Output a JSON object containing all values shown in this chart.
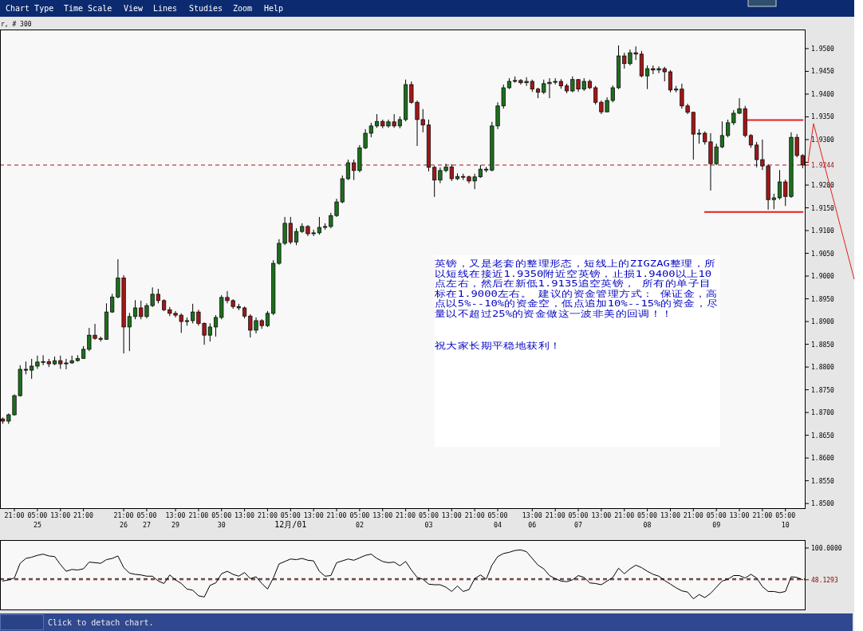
{
  "chart_data": [
    {
      "type": "candlestick",
      "title": "r, # 300",
      "categories": [
        null,
        null,
        "21:00",
        null,
        null,
        null,
        "05:00\n25",
        null,
        null,
        null,
        "13:00",
        null,
        null,
        null,
        "21:00",
        null,
        null,
        null,
        null,
        null,
        null,
        "21:00\n26",
        null,
        null,
        null,
        "05:00\n27",
        null,
        null,
        null,
        null,
        "13:00\n29",
        null,
        null,
        null,
        "21:00",
        null,
        null,
        null,
        "05:00\n30",
        null,
        null,
        null,
        "13:00",
        null,
        null,
        null,
        "21:00",
        null,
        null,
        null,
        "05:00\n12月/01",
        null,
        null,
        null,
        "13:00",
        null,
        null,
        null,
        "21:00",
        null,
        null,
        null,
        "05:00\n02",
        null,
        null,
        null,
        "13:00",
        null,
        null,
        null,
        "21:00",
        null,
        null,
        null,
        "05:00\n03",
        null,
        null,
        null,
        "13:00",
        null,
        null,
        null,
        "21:00",
        null,
        null,
        null,
        "05:00\n04",
        null,
        null,
        null,
        null,
        null,
        "13:00\n06",
        null,
        null,
        null,
        "21:00",
        null,
        null,
        null,
        "05:00\n07",
        null,
        null,
        null,
        "13:00",
        null,
        null,
        null,
        "21:00",
        null,
        null,
        null,
        "05:00\n08",
        null,
        null,
        null,
        "13:00",
        null,
        null,
        null,
        "21:00",
        null,
        null,
        null,
        "05:00\n09",
        null,
        null,
        null,
        "13:00",
        null,
        null,
        null,
        "21:00",
        null,
        null,
        null,
        "05:00\n10",
        null,
        null,
        null
      ],
      "ohlc": [
        [
          1.8686,
          1.8689,
          1.8675,
          1.8681
        ],
        [
          1.8681,
          1.8698,
          1.8675,
          1.8695
        ],
        [
          1.8695,
          1.874,
          1.8693,
          1.8737
        ],
        [
          1.8737,
          1.8804,
          1.8735,
          1.8795
        ],
        [
          1.8795,
          1.8812,
          1.8784,
          1.8793
        ],
        [
          1.8793,
          1.8818,
          1.8774,
          1.8802
        ],
        [
          1.8802,
          1.8825,
          1.8796,
          1.8811
        ],
        [
          1.8811,
          1.8826,
          1.8804,
          1.8812
        ],
        [
          1.8812,
          1.8818,
          1.88,
          1.8807
        ],
        [
          1.8807,
          1.8823,
          1.8804,
          1.8814
        ],
        [
          1.8814,
          1.8825,
          1.8796,
          1.8807
        ],
        [
          1.8807,
          1.8818,
          1.8795,
          1.8809
        ],
        [
          1.8809,
          1.8825,
          1.8807,
          1.8814
        ],
        [
          1.8814,
          1.8826,
          1.8812,
          1.8819
        ],
        [
          1.8819,
          1.8846,
          1.8818,
          1.8839
        ],
        [
          1.8839,
          1.8886,
          1.8835,
          1.887
        ],
        [
          1.887,
          1.8895,
          1.886,
          1.8863
        ],
        [
          1.8863,
          1.8867,
          1.8856,
          1.8861
        ],
        [
          1.8861,
          1.894,
          1.886,
          1.8921
        ],
        [
          1.8921,
          1.8961,
          1.8919,
          1.8954
        ],
        [
          1.8954,
          1.9037,
          1.8951,
          1.8996
        ],
        [
          1.8996,
          1.9002,
          1.883,
          1.8888
        ],
        [
          1.8888,
          1.8919,
          1.8835,
          1.8911
        ],
        [
          1.8911,
          1.8947,
          1.8905,
          1.893
        ],
        [
          1.893,
          1.8946,
          1.8905,
          1.8911
        ],
        [
          1.8911,
          1.894,
          1.8907,
          1.8935
        ],
        [
          1.8935,
          1.8975,
          1.8932,
          1.896
        ],
        [
          1.896,
          1.8972,
          1.894,
          1.8946
        ],
        [
          1.8946,
          1.8949,
          1.8923,
          1.8926
        ],
        [
          1.8926,
          1.8932,
          1.8912,
          1.8918
        ],
        [
          1.8918,
          1.8923,
          1.8909,
          1.8914
        ],
        [
          1.8914,
          1.8918,
          1.8875,
          1.89
        ],
        [
          1.89,
          1.8909,
          1.8891,
          1.8902
        ],
        [
          1.8902,
          1.8939,
          1.8896,
          1.8921
        ],
        [
          1.8921,
          1.8926,
          1.8891,
          1.8896
        ],
        [
          1.8896,
          1.8898,
          1.8849,
          1.887
        ],
        [
          1.887,
          1.8896,
          1.8856,
          1.8888
        ],
        [
          1.8888,
          1.8914,
          1.8867,
          1.8909
        ],
        [
          1.8909,
          1.8958,
          1.8905,
          1.8953
        ],
        [
          1.8953,
          1.8967,
          1.894,
          1.8946
        ],
        [
          1.8946,
          1.8949,
          1.8928,
          1.8933
        ],
        [
          1.8933,
          1.8939,
          1.8925,
          1.893
        ],
        [
          1.893,
          1.8933,
          1.8907,
          1.8912
        ],
        [
          1.8912,
          1.8916,
          1.8865,
          1.8881
        ],
        [
          1.8881,
          1.8909,
          1.8874,
          1.8902
        ],
        [
          1.8902,
          1.8905,
          1.8884,
          1.8891
        ],
        [
          1.8891,
          1.8923,
          1.8888,
          1.8918
        ],
        [
          1.8918,
          1.9035,
          1.8914,
          1.9028
        ],
        [
          1.9028,
          1.9081,
          1.9025,
          1.9072
        ],
        [
          1.9072,
          1.913,
          1.9068,
          1.9116
        ],
        [
          1.9116,
          1.913,
          1.907,
          1.9075
        ],
        [
          1.9075,
          1.9105,
          1.9068,
          1.9098
        ],
        [
          1.9098,
          1.9116,
          1.9095,
          1.9109
        ],
        [
          1.9109,
          1.9112,
          1.9088,
          1.9093
        ],
        [
          1.9093,
          1.9102,
          1.9088,
          1.9095
        ],
        [
          1.9095,
          1.913,
          1.9091,
          1.9107
        ],
        [
          1.9107,
          1.9116,
          1.9102,
          1.9109
        ],
        [
          1.9109,
          1.9139,
          1.9105,
          1.9133
        ],
        [
          1.9133,
          1.917,
          1.913,
          1.9163
        ],
        [
          1.9163,
          1.9221,
          1.916,
          1.9214
        ],
        [
          1.9214,
          1.9256,
          1.9211,
          1.9249
        ],
        [
          1.9249,
          1.9256,
          1.9211,
          1.9232
        ],
        [
          1.9232,
          1.9288,
          1.9228,
          1.9282
        ],
        [
          1.9282,
          1.9323,
          1.9279,
          1.9314
        ],
        [
          1.9314,
          1.9337,
          1.9305,
          1.933
        ],
        [
          1.933,
          1.9356,
          1.9326,
          1.934
        ],
        [
          1.934,
          1.9344,
          1.9325,
          1.933
        ],
        [
          1.933,
          1.9344,
          1.9326,
          1.9339
        ],
        [
          1.9339,
          1.9356,
          1.9326,
          1.933
        ],
        [
          1.933,
          1.9351,
          1.9325,
          1.9344
        ],
        [
          1.9344,
          1.9432,
          1.934,
          1.9421
        ],
        [
          1.9421,
          1.9428,
          1.9379,
          1.9382
        ],
        [
          1.9382,
          1.9386,
          1.9286,
          1.9344
        ],
        [
          1.9344,
          1.9367,
          1.9316,
          1.9332
        ],
        [
          1.9332,
          1.9344,
          1.923,
          1.9239
        ],
        [
          1.9239,
          1.9242,
          1.9174,
          1.9211
        ],
        [
          1.9211,
          1.9239,
          1.9204,
          1.9232
        ],
        [
          1.9232,
          1.9247,
          1.9228,
          1.924
        ],
        [
          1.924,
          1.9246,
          1.9209,
          1.9214
        ],
        [
          1.9214,
          1.9226,
          1.9211,
          1.9219
        ],
        [
          1.9219,
          1.9225,
          1.9211,
          1.9218
        ],
        [
          1.9218,
          1.9221,
          1.9204,
          1.9209
        ],
        [
          1.9209,
          1.9225,
          1.9191,
          1.9218
        ],
        [
          1.9218,
          1.9244,
          1.9216,
          1.9235
        ],
        [
          1.9235,
          1.924,
          1.9228,
          1.9233
        ],
        [
          1.9233,
          1.9339,
          1.923,
          1.933
        ],
        [
          1.933,
          1.9382,
          1.9323,
          1.9374
        ],
        [
          1.9374,
          1.9421,
          1.9368,
          1.9414
        ],
        [
          1.9414,
          1.9435,
          1.9411,
          1.9428
        ],
        [
          1.9428,
          1.9439,
          1.9425,
          1.943
        ],
        [
          1.943,
          1.9433,
          1.9421,
          1.9425
        ],
        [
          1.9425,
          1.9437,
          1.9418,
          1.9428
        ],
        [
          1.9428,
          1.9432,
          1.9405,
          1.9411
        ],
        [
          1.9411,
          1.9414,
          1.9391,
          1.9404
        ],
        [
          1.9404,
          1.9432,
          1.94,
          1.9423
        ],
        [
          1.9423,
          1.9435,
          1.9391,
          1.9426
        ],
        [
          1.9426,
          1.9435,
          1.9421,
          1.9428
        ],
        [
          1.9428,
          1.9433,
          1.9412,
          1.9418
        ],
        [
          1.9418,
          1.9423,
          1.9402,
          1.9407
        ],
        [
          1.9407,
          1.9439,
          1.9404,
          1.9432
        ],
        [
          1.9432,
          1.9433,
          1.9405,
          1.9411
        ],
        [
          1.9411,
          1.9435,
          1.9407,
          1.9428
        ],
        [
          1.9428,
          1.9432,
          1.9411,
          1.9414
        ],
        [
          1.9414,
          1.9418,
          1.9377,
          1.9382
        ],
        [
          1.9382,
          1.9386,
          1.9356,
          1.9361
        ],
        [
          1.9361,
          1.9393,
          1.936,
          1.9386
        ],
        [
          1.9386,
          1.9419,
          1.9382,
          1.9414
        ],
        [
          1.9414,
          1.9507,
          1.9411,
          1.9484
        ],
        [
          1.9484,
          1.9491,
          1.9456,
          1.9467
        ],
        [
          1.9467,
          1.9498,
          1.9463,
          1.9491
        ],
        [
          1.9491,
          1.9505,
          1.9475,
          1.9488
        ],
        [
          1.9488,
          1.9495,
          1.9437,
          1.944
        ],
        [
          1.944,
          1.9463,
          1.9411,
          1.9456
        ],
        [
          1.9456,
          1.9463,
          1.9444,
          1.9453
        ],
        [
          1.9453,
          1.9461,
          1.9446,
          1.9456
        ],
        [
          1.9456,
          1.946,
          1.9428,
          1.9449
        ],
        [
          1.9449,
          1.9453,
          1.9404,
          1.9409
        ],
        [
          1.9409,
          1.9418,
          1.9404,
          1.9411
        ],
        [
          1.9411,
          1.9423,
          1.9368,
          1.9374
        ],
        [
          1.9374,
          1.9379,
          1.9356,
          1.936
        ],
        [
          1.936,
          1.9361,
          1.9256,
          1.9312
        ],
        [
          1.9312,
          1.9323,
          1.9291,
          1.9314
        ],
        [
          1.9314,
          1.9318,
          1.9289,
          1.9295
        ],
        [
          1.9295,
          1.9314,
          1.9188,
          1.9247
        ],
        [
          1.9247,
          1.9291,
          1.9244,
          1.9284
        ],
        [
          1.9284,
          1.934,
          1.9281,
          1.9309
        ],
        [
          1.9309,
          1.9344,
          1.9305,
          1.9337
        ],
        [
          1.9337,
          1.9365,
          1.9332,
          1.9358
        ],
        [
          1.9358,
          1.9391,
          1.9356,
          1.9368
        ],
        [
          1.9368,
          1.9374,
          1.9305,
          1.9309
        ],
        [
          1.9309,
          1.9312,
          1.9282,
          1.9288
        ],
        [
          1.9288,
          1.9295,
          1.9239,
          1.9256
        ],
        [
          1.9256,
          1.93,
          1.9233,
          1.9242
        ],
        [
          1.9242,
          1.9246,
          1.9146,
          1.9168
        ],
        [
          1.9168,
          1.9181,
          1.9147,
          1.9172
        ],
        [
          1.9172,
          1.9233,
          1.9168,
          1.9207
        ],
        [
          1.9207,
          1.9212,
          1.9154,
          1.9175
        ],
        [
          1.9175,
          1.9316,
          1.9172,
          1.9305
        ],
        [
          1.9305,
          1.9312,
          1.9261,
          1.9265
        ],
        [
          1.9265,
          1.9268,
          1.9237,
          1.9244
        ]
      ],
      "colors": [
        "#a01818",
        "#1e6e1e",
        "#1e6e1e",
        "#1e6e1e",
        "#a01818",
        "#1e6e1e",
        "#1e6e1e",
        "#1e6e1e",
        "#a01818",
        "#1e6e1e",
        "#a01818",
        "#1e6e1e",
        "#1e6e1e",
        "#1e6e1e",
        "#1e6e1e",
        "#1e6e1e",
        "#a01818",
        "#a01818",
        "#1e6e1e",
        "#1e6e1e",
        "#1e6e1e",
        "#a01818",
        "#1e6e1e",
        "#1e6e1e",
        "#a01818",
        "#1e6e1e",
        "#1e6e1e",
        "#a01818",
        "#a01818",
        "#a01818",
        "#a01818",
        "#a01818",
        "#1e6e1e",
        "#1e6e1e",
        "#a01818",
        "#a01818",
        "#1e6e1e",
        "#1e6e1e",
        "#1e6e1e",
        "#a01818",
        "#a01818",
        "#a01818",
        "#a01818",
        "#a01818",
        "#1e6e1e",
        "#a01818",
        "#1e6e1e",
        "#1e6e1e",
        "#1e6e1e",
        "#1e6e1e",
        "#a01818",
        "#1e6e1e",
        "#1e6e1e",
        "#a01818",
        "#1e6e1e",
        "#1e6e1e",
        "#1e6e1e",
        "#1e6e1e",
        "#1e6e1e",
        "#1e6e1e",
        "#1e6e1e",
        "#a01818",
        "#1e6e1e",
        "#1e6e1e",
        "#1e6e1e",
        "#1e6e1e",
        "#a01818",
        "#1e6e1e",
        "#a01818",
        "#1e6e1e",
        "#1e6e1e",
        "#a01818",
        "#a01818",
        "#a01818",
        "#a01818",
        "#a01818",
        "#1e6e1e",
        "#1e6e1e",
        "#a01818",
        "#1e6e1e",
        "#a01818",
        "#a01818",
        "#1e6e1e",
        "#1e6e1e",
        "#a01818",
        "#1e6e1e",
        "#1e6e1e",
        "#1e6e1e",
        "#1e6e1e",
        "#1e6e1e",
        "#a01818",
        "#1e6e1e",
        "#a01818",
        "#a01818",
        "#1e6e1e",
        "#1e6e1e",
        "#1e6e1e",
        "#a01818",
        "#a01818",
        "#1e6e1e",
        "#a01818",
        "#1e6e1e",
        "#a01818",
        "#a01818",
        "#a01818",
        "#1e6e1e",
        "#1e6e1e",
        "#1e6e1e",
        "#a01818",
        "#1e6e1e",
        "#a01818",
        "#a01818",
        "#1e6e1e",
        "#a01818",
        "#1e6e1e",
        "#a01818",
        "#a01818",
        "#1e6e1e",
        "#a01818",
        "#a01818",
        "#a01818",
        "#1e6e1e",
        "#a01818",
        "#a01818",
        "#1e6e1e",
        "#1e6e1e",
        "#1e6e1e",
        "#1e6e1e",
        "#1e6e1e",
        "#a01818",
        "#a01818",
        "#a01818",
        "#a01818",
        "#a01818",
        "#1e6e1e",
        "#1e6e1e",
        "#a01818",
        "#1e6e1e",
        "#a01818",
        "#a01818"
      ],
      "series": [
        {
          "type": "line",
          "color": "#e41e1e",
          "values": [
            null,
            null,
            null,
            null,
            null,
            null,
            null,
            null,
            null,
            null,
            null,
            null,
            null,
            null,
            null,
            null,
            null,
            null,
            null,
            null,
            null,
            null,
            null,
            null,
            null,
            null,
            null,
            null,
            null,
            null,
            null,
            null,
            null,
            null,
            null,
            null,
            null,
            null,
            null,
            null,
            null,
            null,
            null,
            null,
            null,
            null,
            null,
            null,
            null,
            null,
            null,
            null,
            null,
            null,
            null,
            null,
            null,
            null,
            null,
            null,
            null,
            null,
            null,
            null,
            null,
            null,
            null,
            null,
            null,
            null,
            null,
            null,
            null,
            null,
            null,
            null,
            null,
            null,
            null,
            null,
            null,
            null,
            null,
            null,
            null,
            null,
            null,
            null,
            null,
            null,
            null,
            null,
            null,
            null,
            null,
            null,
            null,
            null,
            null,
            null,
            null,
            null,
            null,
            null,
            null,
            null,
            null,
            null,
            null,
            null,
            null,
            null,
            null,
            null,
            null,
            null,
            null,
            null,
            null,
            null,
            null,
            null,
            null,
            null,
            null,
            null,
            null,
            null,
            null,
            1.9343,
            1.9343,
            1.9343,
            1.9343,
            1.9343,
            1.9343,
            1.9343,
            1.9343,
            1.9343,
            1.9343,
            1.9343
          ]
        },
        {
          "type": "line",
          "color": "#e41e1e",
          "values": [
            null,
            null,
            null,
            null,
            null,
            null,
            null,
            null,
            null,
            null,
            null,
            null,
            null,
            null,
            null,
            null,
            null,
            null,
            null,
            null,
            null,
            null,
            null,
            null,
            null,
            null,
            null,
            null,
            null,
            null,
            null,
            null,
            null,
            null,
            null,
            null,
            null,
            null,
            null,
            null,
            null,
            null,
            null,
            null,
            null,
            null,
            null,
            null,
            null,
            null,
            null,
            null,
            null,
            null,
            null,
            null,
            null,
            null,
            null,
            null,
            null,
            null,
            null,
            null,
            null,
            null,
            null,
            null,
            null,
            null,
            null,
            null,
            null,
            null,
            null,
            null,
            null,
            null,
            null,
            null,
            null,
            null,
            null,
            null,
            null,
            null,
            null,
            null,
            null,
            null,
            null,
            null,
            null,
            null,
            null,
            null,
            null,
            null,
            null,
            null,
            null,
            null,
            null,
            null,
            null,
            null,
            null,
            null,
            null,
            null,
            null,
            null,
            null,
            null,
            null,
            null,
            null,
            null,
            null,
            null,
            null,
            null,
            1.9141,
            1.9141,
            1.9141,
            1.9141,
            1.9141,
            1.9141,
            1.9141,
            1.9141,
            1.9141,
            1.9141,
            1.9141,
            1.9141,
            1.9141,
            1.9141,
            1.9141,
            1.9141,
            1.9141,
            1.9141
          ]
        }
      ],
      "ylim": [
        1.8488,
        1.9542
      ],
      "yticks": [
        {
          "value": 1.85,
          "label": "1.8500"
        },
        {
          "value": 1.855,
          "label": "1.8550"
        },
        {
          "value": 1.86,
          "label": "1.8600"
        },
        {
          "value": 1.865,
          "label": "1.8650"
        },
        {
          "value": 1.87,
          "label": "1.8700"
        },
        {
          "value": 1.875,
          "label": "1.8750"
        },
        {
          "value": 1.88,
          "label": "1.8800"
        },
        {
          "value": 1.885,
          "label": "1.8850"
        },
        {
          "value": 1.89,
          "label": "1.8900"
        },
        {
          "value": 1.895,
          "label": "1.8950"
        },
        {
          "value": 1.9,
          "label": "1.9000"
        },
        {
          "value": 1.905,
          "label": "1.9050"
        },
        {
          "value": 1.91,
          "label": "1.9100"
        },
        {
          "value": 1.915,
          "label": "1.9150"
        },
        {
          "value": 1.92,
          "label": "1.9200"
        },
        {
          "value": 1.925,
          "label": null
        },
        {
          "value": 1.93,
          "label": "1.9300"
        },
        {
          "value": 1.935,
          "label": "1.9350"
        },
        {
          "value": 1.94,
          "label": "1.9400"
        },
        {
          "value": 1.945,
          "label": "1.9450"
        },
        {
          "value": 1.95,
          "label": "1.9500"
        }
      ],
      "ref_lines": [
        {
          "axis": "y",
          "value": 1.9244,
          "label": "1.9244",
          "color": "#a01818",
          "line_style": "dashed"
        }
      ],
      "annotations": [
        "Chart Type",
        "Time Scale",
        "View",
        "Lines",
        "Studies",
        "Zoom",
        "Help",
        "英镑，又是老套的整理形态，短线上的ZIGZAG整理，所以短线在接近1.9350附近空英镑，止损1.9400以上10点左右，然后在新低1.9135追空英镑， 所有的单子目标在1.9000左右。 建议的资金管理方式： 保证金，高点以5%--10%的资金空，低点追加10%--15%的资金，尽量以不超过25%的资金做这一波非美的回调！！",
        "祝大家长期平稳地获利！",
        "Click to detach chart."
      ]
    },
    {
      "type": "line",
      "categories": [
        null,
        null,
        null,
        null,
        null,
        null,
        null,
        null,
        null,
        null,
        null,
        null,
        null,
        null,
        null,
        null,
        null,
        null,
        null,
        null,
        null,
        null,
        null,
        null,
        null,
        null,
        null,
        null,
        null,
        null,
        null,
        null,
        null,
        null,
        null,
        null,
        null,
        null,
        null,
        null,
        null,
        null,
        null,
        null,
        null,
        null,
        null,
        null,
        null,
        null,
        null,
        null,
        null,
        null,
        null,
        null,
        null,
        null,
        null,
        null,
        null,
        null,
        null,
        null,
        null,
        null,
        null,
        null,
        null,
        null,
        null,
        null,
        null,
        null,
        null,
        null,
        null,
        null,
        null,
        null,
        null,
        null,
        null,
        null,
        null,
        null,
        null,
        null,
        null,
        null,
        null,
        null,
        null,
        null,
        null,
        null,
        null,
        null,
        null,
        null,
        null,
        null,
        null,
        null,
        null,
        null,
        null,
        null,
        null,
        null,
        null,
        null,
        null,
        null,
        null,
        null,
        null,
        null,
        null,
        null,
        null,
        null,
        null,
        null,
        null,
        null,
        null,
        null,
        null,
        null,
        null,
        null,
        null,
        null,
        null,
        null,
        null,
        null,
        null,
        null
      ],
      "series": [
        {
          "color": "#000000",
          "values": [
            46,
            48,
            51,
            75,
            83,
            85,
            88,
            90,
            87,
            86,
            73,
            62,
            65,
            64,
            66,
            77,
            76,
            75,
            81,
            83,
            87,
            68,
            59,
            57,
            56,
            54,
            54,
            46,
            42,
            56,
            48,
            42,
            33,
            31,
            22,
            20,
            39,
            43,
            58,
            62,
            57,
            54,
            60,
            50,
            53,
            42,
            33,
            51,
            74,
            78,
            82,
            81,
            83,
            80,
            79,
            62,
            54,
            55,
            76,
            79,
            82,
            80,
            84,
            88,
            90,
            83,
            78,
            76,
            77,
            71,
            78,
            64,
            52,
            49,
            41,
            40,
            40,
            36,
            29,
            38,
            29,
            32,
            50,
            56,
            49,
            72,
            86,
            91,
            93,
            96,
            97,
            94,
            83,
            72,
            66,
            55,
            50,
            46,
            45,
            48,
            55,
            52,
            43,
            42,
            40,
            46,
            52,
            67,
            58,
            66,
            72,
            68,
            62,
            57,
            54,
            47,
            41,
            35,
            30,
            28,
            17,
            24,
            19,
            26,
            36,
            46,
            49,
            55,
            55,
            51,
            57,
            51,
            37,
            29,
            29,
            27,
            29,
            53,
            52,
            48
          ]
        }
      ],
      "ylim": [
        -1.7,
        113
      ],
      "yticks": [
        {
          "value": 100,
          "label": "100.0000"
        },
        {
          "value": 48.1293,
          "label": "48.1293"
        }
      ],
      "ref_lines": [
        {
          "axis": "y",
          "value": 50,
          "color": "#3a1a1a",
          "line_style": "dashed"
        },
        {
          "axis": "y",
          "value": 48.1293,
          "color": "#8b0000",
          "line_style": "dashed"
        }
      ]
    }
  ]
}
